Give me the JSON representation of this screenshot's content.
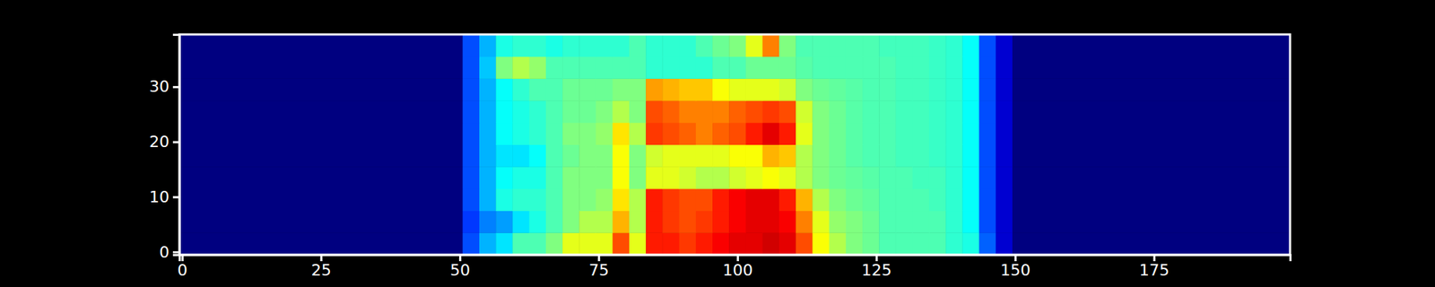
{
  "chart_data": {
    "type": "heatmap",
    "xlim": [
      -0.5,
      199.5
    ],
    "ylim": [
      -0.5,
      39.5
    ],
    "xticks": [
      0,
      25,
      50,
      75,
      100,
      125,
      150,
      175
    ],
    "yticks": [
      0,
      10,
      20,
      30
    ],
    "zlim": [
      0,
      1
    ],
    "x_edges": [
      -0.5,
      50.5,
      53.5,
      56.5,
      59.5,
      62.5,
      65.5,
      68.5,
      71.5,
      74.5,
      77.5,
      80.5,
      83.5,
      86.5,
      89.5,
      92.5,
      95.5,
      98.5,
      101.5,
      104.5,
      107.5,
      110.5,
      113.5,
      116.5,
      119.5,
      122.5,
      125.5,
      128.5,
      131.5,
      134.5,
      137.5,
      140.5,
      143.5,
      146.5,
      149.5,
      199.5
    ],
    "y_edges": [
      -0.5,
      3.5,
      7.5,
      11.5,
      15.5,
      19.5,
      23.5,
      27.5,
      31.5,
      35.5,
      39.5
    ],
    "z": [
      [
        0,
        0.2,
        0.3,
        0.35,
        0.45,
        0.45,
        0.5,
        0.6,
        0.6,
        0.6,
        0.8,
        0.6,
        0.85,
        0.85,
        0.82,
        0.85,
        0.88,
        0.9,
        0.9,
        0.92,
        0.9,
        0.8,
        0.62,
        0.55,
        0.5,
        0.48,
        0.45,
        0.45,
        0.45,
        0.45,
        0.42,
        0.4,
        0.22,
        0.08,
        0
      ],
      [
        0,
        0.18,
        0.25,
        0.28,
        0.35,
        0.4,
        0.45,
        0.5,
        0.55,
        0.55,
        0.7,
        0.55,
        0.85,
        0.82,
        0.8,
        0.82,
        0.85,
        0.88,
        0.9,
        0.9,
        0.88,
        0.75,
        0.6,
        0.52,
        0.5,
        0.48,
        0.45,
        0.45,
        0.45,
        0.45,
        0.42,
        0.38,
        0.2,
        0.08,
        0
      ],
      [
        0,
        0.2,
        0.3,
        0.4,
        0.42,
        0.42,
        0.45,
        0.5,
        0.5,
        0.52,
        0.65,
        0.55,
        0.85,
        0.82,
        0.8,
        0.8,
        0.85,
        0.88,
        0.9,
        0.9,
        0.85,
        0.7,
        0.55,
        0.5,
        0.48,
        0.47,
        0.45,
        0.45,
        0.45,
        0.44,
        0.42,
        0.38,
        0.2,
        0.08,
        0
      ],
      [
        0,
        0.2,
        0.3,
        0.38,
        0.4,
        0.4,
        0.45,
        0.5,
        0.5,
        0.5,
        0.62,
        0.5,
        0.6,
        0.6,
        0.58,
        0.55,
        0.55,
        0.58,
        0.6,
        0.62,
        0.6,
        0.55,
        0.5,
        0.48,
        0.47,
        0.46,
        0.45,
        0.45,
        0.44,
        0.44,
        0.42,
        0.38,
        0.2,
        0.08,
        0
      ],
      [
        0,
        0.2,
        0.3,
        0.35,
        0.35,
        0.38,
        0.45,
        0.48,
        0.5,
        0.5,
        0.62,
        0.5,
        0.58,
        0.6,
        0.6,
        0.6,
        0.6,
        0.62,
        0.62,
        0.7,
        0.68,
        0.55,
        0.5,
        0.48,
        0.46,
        0.45,
        0.45,
        0.44,
        0.44,
        0.43,
        0.42,
        0.38,
        0.2,
        0.08,
        0
      ],
      [
        0,
        0.2,
        0.3,
        0.38,
        0.4,
        0.42,
        0.45,
        0.5,
        0.5,
        0.52,
        0.65,
        0.55,
        0.82,
        0.8,
        0.78,
        0.75,
        0.78,
        0.8,
        0.85,
        0.9,
        0.85,
        0.6,
        0.5,
        0.48,
        0.46,
        0.45,
        0.45,
        0.44,
        0.44,
        0.43,
        0.42,
        0.38,
        0.2,
        0.08,
        0
      ],
      [
        0,
        0.2,
        0.3,
        0.38,
        0.4,
        0.42,
        0.45,
        0.48,
        0.48,
        0.5,
        0.55,
        0.5,
        0.8,
        0.78,
        0.75,
        0.75,
        0.75,
        0.78,
        0.8,
        0.82,
        0.8,
        0.58,
        0.5,
        0.48,
        0.46,
        0.45,
        0.45,
        0.44,
        0.44,
        0.43,
        0.42,
        0.38,
        0.2,
        0.08,
        0
      ],
      [
        0,
        0.2,
        0.3,
        0.38,
        0.42,
        0.45,
        0.45,
        0.48,
        0.48,
        0.48,
        0.5,
        0.5,
        0.72,
        0.7,
        0.68,
        0.68,
        0.62,
        0.6,
        0.6,
        0.6,
        0.58,
        0.5,
        0.48,
        0.47,
        0.46,
        0.45,
        0.45,
        0.44,
        0.44,
        0.43,
        0.42,
        0.38,
        0.2,
        0.08,
        0
      ],
      [
        0,
        0.2,
        0.32,
        0.5,
        0.55,
        0.52,
        0.45,
        0.45,
        0.45,
        0.45,
        0.45,
        0.45,
        0.42,
        0.42,
        0.42,
        0.42,
        0.45,
        0.45,
        0.48,
        0.48,
        0.48,
        0.46,
        0.45,
        0.45,
        0.45,
        0.45,
        0.45,
        0.44,
        0.44,
        0.43,
        0.42,
        0.38,
        0.2,
        0.08,
        0
      ],
      [
        0,
        0.2,
        0.3,
        0.4,
        0.42,
        0.42,
        0.4,
        0.42,
        0.42,
        0.42,
        0.42,
        0.45,
        0.42,
        0.42,
        0.42,
        0.45,
        0.48,
        0.5,
        0.6,
        0.75,
        0.5,
        0.45,
        0.45,
        0.45,
        0.45,
        0.45,
        0.44,
        0.44,
        0.44,
        0.43,
        0.42,
        0.38,
        0.2,
        0.08,
        0
      ]
    ]
  }
}
